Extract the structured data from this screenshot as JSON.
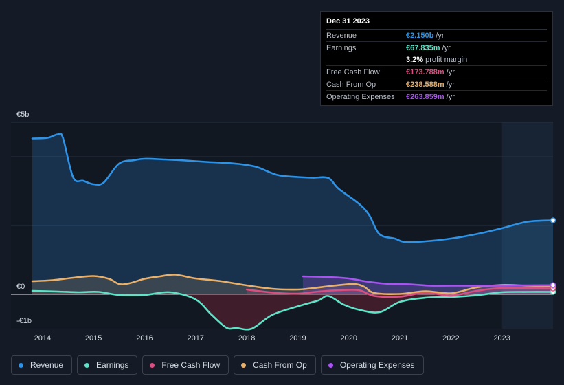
{
  "tooltip": {
    "date": "Dec 31 2023",
    "rows": [
      {
        "label": "Revenue",
        "value": "€2.150b",
        "unit": "/yr",
        "color": "#2e93e6"
      },
      {
        "label": "Earnings",
        "value": "€67.835m",
        "unit": "/yr",
        "color": "#5fe3c8"
      },
      {
        "label": "",
        "value": "3.2%",
        "unit": "profit margin",
        "color": "#ffffff"
      },
      {
        "label": "Free Cash Flow",
        "value": "€173.788m",
        "unit": "/yr",
        "color": "#d94f7f"
      },
      {
        "label": "Cash From Op",
        "value": "€238.588m",
        "unit": "/yr",
        "color": "#e8b06a"
      },
      {
        "label": "Operating Expenses",
        "value": "€263.859m",
        "unit": "/yr",
        "color": "#a855f0"
      }
    ]
  },
  "legend": [
    {
      "label": "Revenue",
      "color": "#2e93e6"
    },
    {
      "label": "Earnings",
      "color": "#5fe3c8"
    },
    {
      "label": "Free Cash Flow",
      "color": "#d94f7f"
    },
    {
      "label": "Cash From Op",
      "color": "#e8b06a"
    },
    {
      "label": "Operating Expenses",
      "color": "#a855f0"
    }
  ],
  "chart_data": {
    "type": "line",
    "title": "",
    "y_unit": "€b",
    "ylim": [
      -1,
      5
    ],
    "xlim": [
      2013.8,
      2024.0
    ],
    "ytick_labels": [
      {
        "value": 5,
        "label": "€5b"
      },
      {
        "value": 0,
        "label": "€0"
      },
      {
        "value": -1,
        "label": "-€1b"
      }
    ],
    "xtick_labels": [
      "2014",
      "2015",
      "2016",
      "2017",
      "2018",
      "2019",
      "2020",
      "2021",
      "2022",
      "2023"
    ],
    "forecast_from": 2023.0,
    "series": [
      {
        "name": "Revenue",
        "color": "#2e93e6",
        "points": [
          [
            2013.8,
            4.53
          ],
          [
            2014.1,
            4.55
          ],
          [
            2014.3,
            4.65
          ],
          [
            2014.4,
            4.55
          ],
          [
            2014.6,
            3.4
          ],
          [
            2014.8,
            3.3
          ],
          [
            2015.0,
            3.2
          ],
          [
            2015.2,
            3.25
          ],
          [
            2015.5,
            3.8
          ],
          [
            2015.8,
            3.9
          ],
          [
            2016.0,
            3.94
          ],
          [
            2016.4,
            3.92
          ],
          [
            2016.8,
            3.89
          ],
          [
            2017.2,
            3.85
          ],
          [
            2017.6,
            3.82
          ],
          [
            2017.9,
            3.78
          ],
          [
            2018.2,
            3.7
          ],
          [
            2018.6,
            3.47
          ],
          [
            2019.0,
            3.41
          ],
          [
            2019.3,
            3.39
          ],
          [
            2019.6,
            3.38
          ],
          [
            2019.8,
            3.07
          ],
          [
            2020.2,
            2.63
          ],
          [
            2020.4,
            2.3
          ],
          [
            2020.6,
            1.75
          ],
          [
            2020.9,
            1.62
          ],
          [
            2021.1,
            1.52
          ],
          [
            2021.5,
            1.54
          ],
          [
            2022.0,
            1.62
          ],
          [
            2022.5,
            1.75
          ],
          [
            2023.0,
            1.92
          ],
          [
            2023.5,
            2.11
          ],
          [
            2024.0,
            2.15
          ]
        ]
      },
      {
        "name": "Earnings",
        "color": "#5fe3c8",
        "points": [
          [
            2013.8,
            0.1
          ],
          [
            2014.3,
            0.08
          ],
          [
            2014.7,
            0.06
          ],
          [
            2015.1,
            0.07
          ],
          [
            2015.5,
            -0.02
          ],
          [
            2016.0,
            -0.02
          ],
          [
            2016.5,
            0.06
          ],
          [
            2017.0,
            -0.15
          ],
          [
            2017.3,
            -0.58
          ],
          [
            2017.6,
            -0.97
          ],
          [
            2017.8,
            -0.98
          ],
          [
            2018.1,
            -1.0
          ],
          [
            2018.5,
            -0.6
          ],
          [
            2019.0,
            -0.35
          ],
          [
            2019.4,
            -0.18
          ],
          [
            2019.6,
            -0.05
          ],
          [
            2019.9,
            -0.3
          ],
          [
            2020.2,
            -0.45
          ],
          [
            2020.6,
            -0.52
          ],
          [
            2021.0,
            -0.22
          ],
          [
            2021.5,
            -0.1
          ],
          [
            2022.0,
            -0.08
          ],
          [
            2022.5,
            -0.03
          ],
          [
            2023.0,
            0.06
          ],
          [
            2023.5,
            0.07
          ],
          [
            2024.0,
            0.07
          ]
        ]
      },
      {
        "name": "Free Cash Flow",
        "color": "#d94f7f",
        "points": [
          [
            2018.0,
            0.14
          ],
          [
            2018.5,
            0.05
          ],
          [
            2019.0,
            0.02
          ],
          [
            2019.4,
            0.08
          ],
          [
            2019.8,
            0.12
          ],
          [
            2020.2,
            0.12
          ],
          [
            2020.5,
            -0.05
          ],
          [
            2021.0,
            -0.07
          ],
          [
            2021.5,
            0.05
          ],
          [
            2022.0,
            -0.04
          ],
          [
            2022.5,
            0.1
          ],
          [
            2023.0,
            0.18
          ],
          [
            2024.0,
            0.17
          ]
        ]
      },
      {
        "name": "Cash From Op",
        "color": "#e8b06a",
        "points": [
          [
            2013.8,
            0.38
          ],
          [
            2014.2,
            0.41
          ],
          [
            2014.6,
            0.48
          ],
          [
            2015.0,
            0.53
          ],
          [
            2015.3,
            0.45
          ],
          [
            2015.5,
            0.3
          ],
          [
            2015.7,
            0.32
          ],
          [
            2016.0,
            0.45
          ],
          [
            2016.3,
            0.52
          ],
          [
            2016.6,
            0.57
          ],
          [
            2017.0,
            0.46
          ],
          [
            2017.5,
            0.38
          ],
          [
            2018.0,
            0.26
          ],
          [
            2018.5,
            0.16
          ],
          [
            2019.0,
            0.14
          ],
          [
            2019.3,
            0.18
          ],
          [
            2019.7,
            0.25
          ],
          [
            2020.1,
            0.3
          ],
          [
            2020.3,
            0.22
          ],
          [
            2020.5,
            0.04
          ],
          [
            2021.0,
            0.01
          ],
          [
            2021.5,
            0.09
          ],
          [
            2022.0,
            0.03
          ],
          [
            2022.5,
            0.2
          ],
          [
            2023.0,
            0.27
          ],
          [
            2023.5,
            0.25
          ],
          [
            2024.0,
            0.24
          ]
        ]
      },
      {
        "name": "Operating Expenses",
        "color": "#a855f0",
        "points": [
          [
            2019.1,
            0.52
          ],
          [
            2019.6,
            0.5
          ],
          [
            2020.0,
            0.46
          ],
          [
            2020.4,
            0.36
          ],
          [
            2020.8,
            0.3
          ],
          [
            2021.2,
            0.29
          ],
          [
            2021.6,
            0.25
          ],
          [
            2022.0,
            0.25
          ],
          [
            2022.5,
            0.25
          ],
          [
            2023.0,
            0.25
          ],
          [
            2023.5,
            0.26
          ],
          [
            2024.0,
            0.264
          ]
        ]
      }
    ]
  }
}
